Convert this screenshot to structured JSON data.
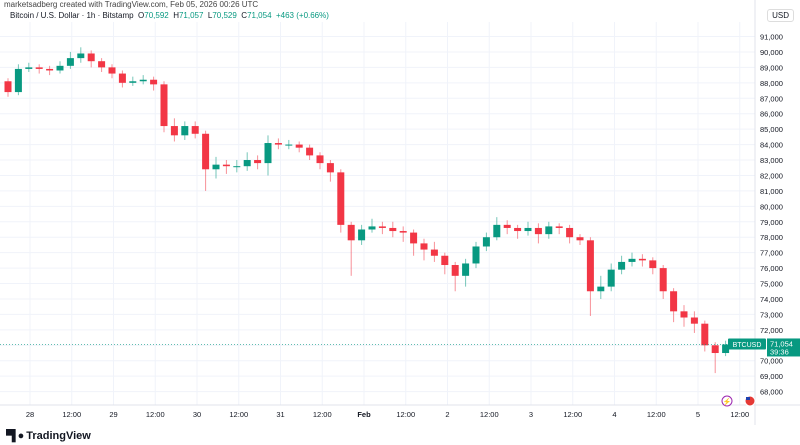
{
  "caption": "marketsadberg created with TradingView.com, Feb 05, 2026 00:26 UTC",
  "legend": {
    "symbol": "Bitcoin / U.S. Dollar · 1h · Bitstamp",
    "o_label": "O",
    "o": "70,592",
    "h_label": "H",
    "h": "71,057",
    "l_label": "L",
    "l": "70,529",
    "c_label": "C",
    "c": "71,054",
    "change": "+463 (+0.66%)"
  },
  "currency_button": "USD",
  "badges": {
    "symbol": "BTCUSD",
    "price": "71,054",
    "countdown": "39:36"
  },
  "logo_text": "TradingView",
  "icons": {
    "logo": "tradingview-logo-icon",
    "lightning": "lightning-event-icon",
    "flag": "us-flag-event-icon"
  },
  "colors": {
    "up": "#089981",
    "down": "#f23645",
    "grid": "#f0f3fa",
    "text": "#131722"
  },
  "chart_data": {
    "type": "candlestick",
    "interval": "1h",
    "ylim": [
      67500,
      91800
    ],
    "yticks": [
      91000,
      90000,
      89000,
      88000,
      87000,
      86000,
      85000,
      84000,
      83000,
      82000,
      81000,
      80000,
      79000,
      78000,
      77000,
      76000,
      75000,
      74000,
      73000,
      72000,
      71000,
      70000,
      69000,
      68000
    ],
    "xtick_labels": [
      "28",
      "12:00",
      "29",
      "12:00",
      "30",
      "12:00",
      "31",
      "12:00",
      "Feb",
      "12:00",
      "2",
      "12:00",
      "3",
      "12:00",
      "4",
      "12:00",
      "5",
      "12:00"
    ],
    "last_price": 71054,
    "grid": true,
    "open": [
      88100,
      87400,
      88900,
      89000,
      88900,
      88800,
      89100,
      89600,
      89900,
      89400,
      89000,
      88600,
      88000,
      88100,
      88200,
      87900,
      85200,
      84600,
      85200,
      84700,
      82400,
      82700,
      82600,
      82600,
      83000,
      82800,
      84100,
      84000,
      84000,
      83800,
      83300,
      82800,
      82200,
      78800,
      77800,
      78500,
      78700,
      78600,
      78400,
      78300,
      77600,
      77200,
      76800,
      76200,
      75500,
      76300,
      77400,
      78000,
      78800,
      78600,
      78400,
      78600,
      78200,
      78700,
      78600,
      78000,
      77800,
      74500,
      74800,
      75900,
      76400,
      76600,
      76500,
      76000,
      74500,
      73200,
      72800,
      72400,
      71000,
      70500
    ],
    "high": [
      88300,
      89200,
      89300,
      89200,
      89100,
      89400,
      90000,
      90300,
      90100,
      89600,
      89200,
      88800,
      88400,
      88500,
      88400,
      88100,
      85700,
      85500,
      85500,
      84900,
      83200,
      83000,
      83000,
      83500,
      83300,
      84600,
      84400,
      84300,
      84200,
      84000,
      83500,
      83000,
      82400,
      79000,
      78800,
      79200,
      79000,
      79000,
      78700,
      78500,
      77900,
      77700,
      77000,
      76400,
      76600,
      77700,
      78300,
      79300,
      79100,
      78800,
      79000,
      78900,
      79000,
      78900,
      78800,
      78200,
      78000,
      75500,
      76300,
      76800,
      77000,
      76900,
      76700,
      76200,
      74700,
      73600,
      73200,
      72600,
      71200,
      71300
    ],
    "low": [
      87100,
      87200,
      88700,
      88600,
      88500,
      88600,
      88900,
      89300,
      89000,
      88700,
      88300,
      87700,
      87800,
      87900,
      87500,
      84800,
      84200,
      84300,
      84400,
      81000,
      81800,
      82100,
      82200,
      82300,
      82400,
      82000,
      83700,
      83700,
      83500,
      83000,
      82400,
      81600,
      78300,
      75500,
      77500,
      78300,
      78200,
      78000,
      77700,
      76800,
      76500,
      76400,
      75600,
      74500,
      74800,
      76000,
      77100,
      77800,
      78200,
      77900,
      78100,
      77600,
      77900,
      78200,
      77600,
      77500,
      72900,
      74000,
      74500,
      75600,
      76100,
      76100,
      75600,
      74000,
      72500,
      72200,
      71800,
      70600,
      69200,
      70300
    ],
    "close": [
      87400,
      88900,
      89000,
      88900,
      88800,
      89100,
      89600,
      89900,
      89400,
      89000,
      88600,
      88000,
      88100,
      88200,
      87900,
      85200,
      84600,
      85200,
      84700,
      82400,
      82700,
      82600,
      82600,
      83000,
      82800,
      84100,
      84000,
      84000,
      83800,
      83300,
      82800,
      82200,
      78800,
      77800,
      78500,
      78700,
      78600,
      78400,
      78300,
      77600,
      77200,
      76800,
      76200,
      75500,
      76300,
      77400,
      78000,
      78800,
      78600,
      78400,
      78600,
      78200,
      78700,
      78600,
      78000,
      77800,
      74500,
      74800,
      75900,
      76400,
      76600,
      76500,
      76000,
      74500,
      73200,
      72800,
      72400,
      71000,
      70500,
      71054
    ]
  }
}
